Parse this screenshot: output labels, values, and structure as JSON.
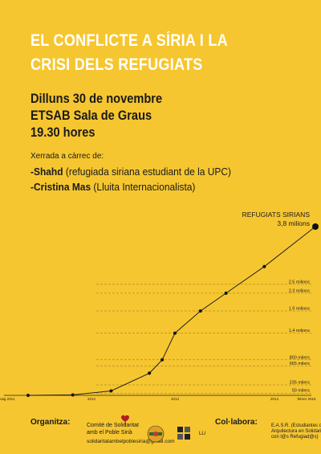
{
  "title": {
    "line1": "EL CONFLICTE A SÍRIA I LA",
    "line2": "CRISI DELS REFUGIATS"
  },
  "event": {
    "date": "Dilluns 30 de novembre",
    "place": "ETSAB Sala de Graus",
    "time": "19.30 hores"
  },
  "talk": {
    "heading": "Xerrada a càrrec de:",
    "speaker1_name": "-Shahd",
    "speaker1_desc": " (refugiada siriana estudiant de la UPC)",
    "speaker2_name": "-Cristina Mas",
    "speaker2_desc": " (Lluita Internacionalista)"
  },
  "chart_data": {
    "type": "line",
    "title": "REFUGIATS SIRIANS",
    "x_ticks": [
      "maig 2011",
      "2012",
      "2013",
      "2014",
      "febrer 2015"
    ],
    "points": [
      {
        "x": "2011-05",
        "y": 0
      },
      {
        "x": "2011-12",
        "y": 0.01
      },
      {
        "x": "2012-06",
        "y": 0.1
      },
      {
        "x": "2012-12",
        "y": 0.5
      },
      {
        "x": "2013-02",
        "y": 0.8
      },
      {
        "x": "2013-04",
        "y": 1.4
      },
      {
        "x": "2013-08",
        "y": 1.9
      },
      {
        "x": "2013-12",
        "y": 2.3
      },
      {
        "x": "2014-06",
        "y": 2.9
      },
      {
        "x": "2015-02",
        "y": 3.8
      }
    ],
    "annotations": [
      {
        "label": "3,8 milions",
        "y": 3.8
      },
      {
        "label": "2,5 milions",
        "y": 2.5
      },
      {
        "label": "2,3 milions",
        "y": 2.3
      },
      {
        "label": "1,9 milions",
        "y": 1.9
      },
      {
        "label": "1,4 milions",
        "y": 1.4
      },
      {
        "label": "800 milers",
        "y": 0.8
      },
      {
        "label": "665 milers",
        "y": 0.665
      },
      {
        "label": "235 milers",
        "y": 0.235
      },
      {
        "label": "50 milers",
        "y": 0.05
      }
    ]
  },
  "footer": {
    "organitza_label": "Organitza:",
    "org_line1": "Comitè de Solidaritat",
    "org_line2": "amb el Poble Sirià",
    "org_email": "solidaritatambelpoblesiria@gmail.com",
    "collabora_label": "Col·labora:",
    "easr_line1": "E.A.S.R. (Estudiantes de",
    "easr_line2": "Arquitectura en Solidaridad",
    "easr_line3": "con l@s Refugiad@s)",
    "logo_text": "LLI"
  },
  "colors": {
    "background": "#f6c630",
    "title": "#ffffff",
    "text": "#1a1a1a"
  }
}
